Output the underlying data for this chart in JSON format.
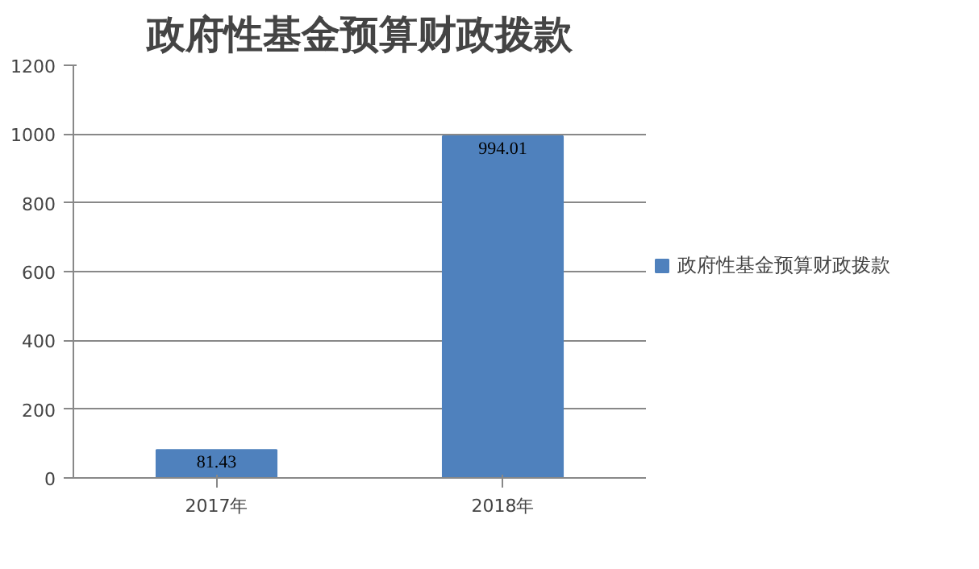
{
  "chart_data": {
    "type": "bar",
    "title": "政府性基金预算财政拨款",
    "categories": [
      "2017年",
      "2018年"
    ],
    "series": [
      {
        "name": "政府性基金预算财政拨款",
        "color": "#4f81bd",
        "values": [
          81.43,
          994.01
        ]
      }
    ],
    "ylim": [
      0,
      1200
    ],
    "yticks": [
      0,
      200,
      400,
      600,
      800,
      1000,
      1200
    ],
    "grid": "y",
    "legend": "right",
    "data_labels": true
  }
}
